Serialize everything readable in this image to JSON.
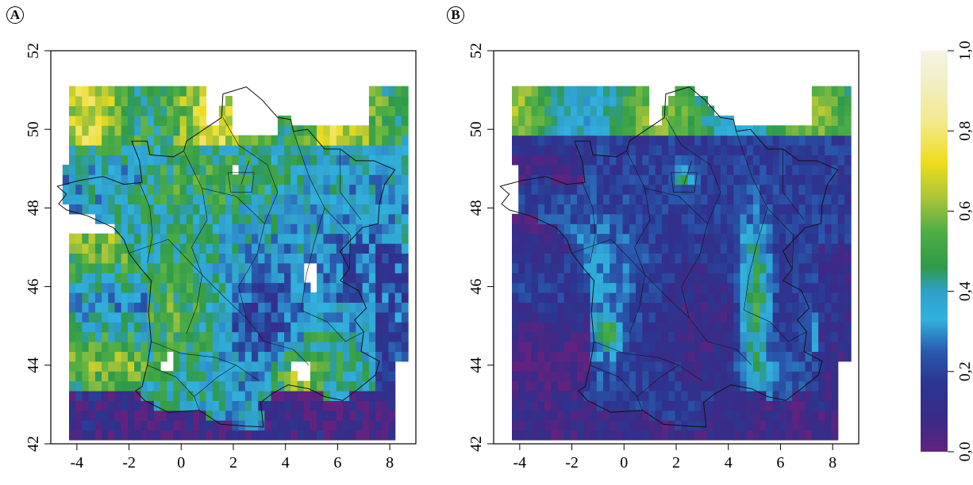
{
  "panels": [
    {
      "letter": "A",
      "xticks": [
        "-4",
        "-2",
        "0",
        "2",
        "4",
        "6",
        "8"
      ],
      "yticks": [
        "42",
        "44",
        "46",
        "48",
        "50",
        "52"
      ]
    },
    {
      "letter": "B",
      "xticks": [
        "-4",
        "-2",
        "0",
        "2",
        "4",
        "6",
        "8"
      ],
      "yticks": [
        "42",
        "44",
        "46",
        "48",
        "50",
        "52"
      ]
    }
  ],
  "colorbar": {
    "ticks": [
      "0,0",
      "0,2",
      "0,4",
      "0,6",
      "0,8",
      "1,0"
    ],
    "colors": [
      "#62237f",
      "#2b3690",
      "#1f7fc2",
      "#31b1df",
      "#2f9a49",
      "#4fae45",
      "#a8c43a",
      "#eddd1c",
      "#f1efc6",
      "#f6f3e6"
    ]
  },
  "chart_data": [
    {
      "type": "heatmap",
      "xlim": [
        -5,
        9
      ],
      "ylim": [
        42,
        52
      ],
      "note_layer": "gridded raster over France with regional boundaries"
    },
    {
      "type": "heatmap",
      "xlim": [
        -5,
        9
      ],
      "ylim": [
        42,
        52
      ],
      "note_layer": "gridded raster over France with regional boundaries"
    }
  ]
}
